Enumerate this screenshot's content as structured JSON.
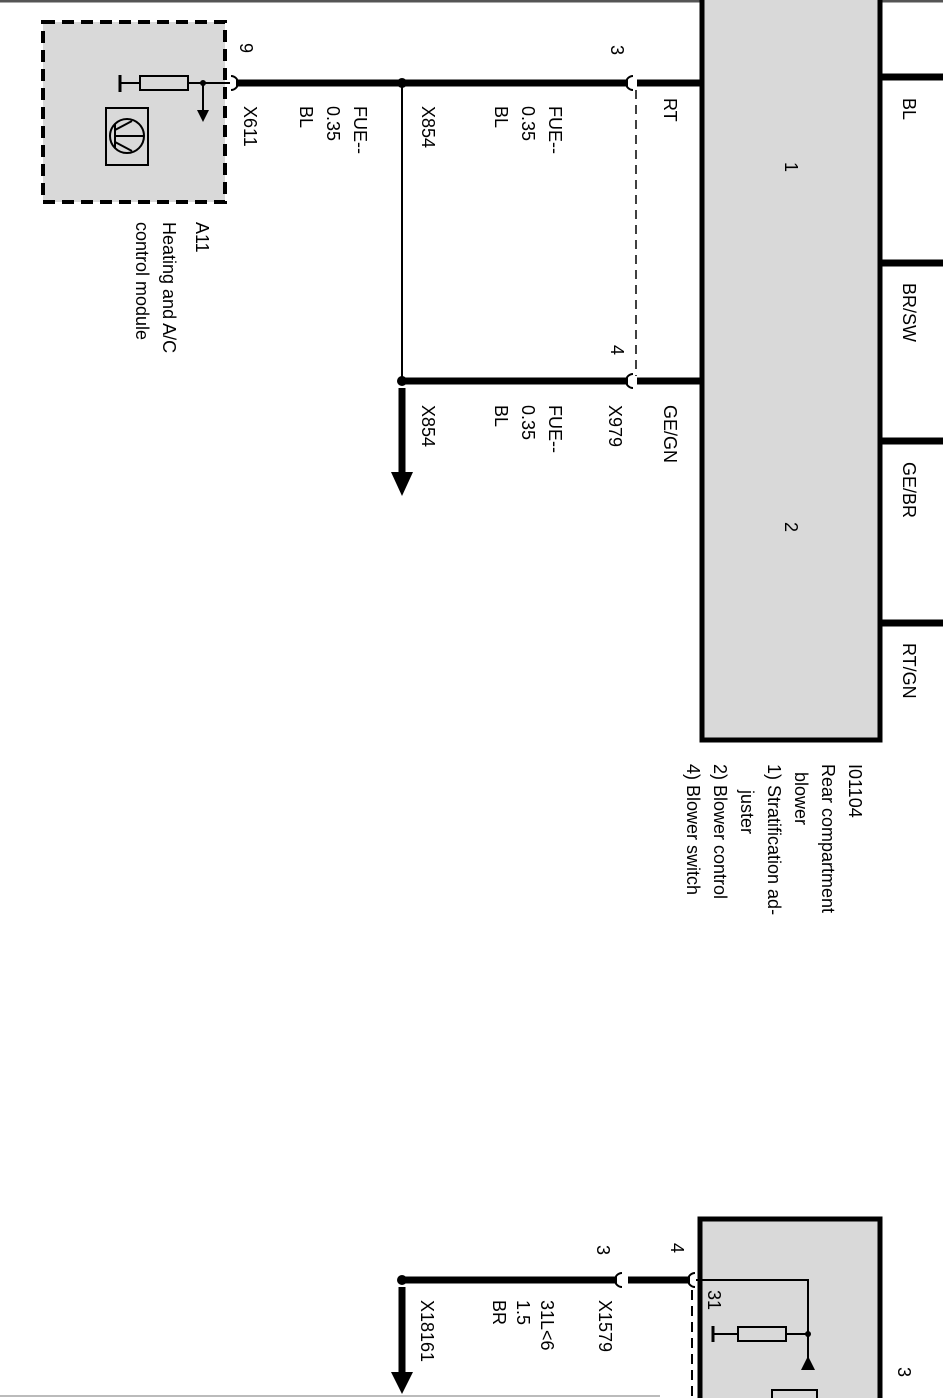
{
  "module_a11": {
    "id": "A11",
    "name_line1": "Heating and A/C",
    "name_line2": "control module",
    "pin": "9",
    "connector": "X611",
    "wire": [
      "FUE--",
      "0.35",
      "BL"
    ]
  },
  "splice_top": {
    "connector": "X854",
    "wire": [
      "FUE--",
      "0.35",
      "BL"
    ]
  },
  "splice_bottom": {
    "connector": "X854",
    "wire": [
      "FUE--",
      "0.35",
      "BL"
    ]
  },
  "blower_pins": {
    "pin3": "3",
    "pin4": "4",
    "color_pin3": "RT",
    "color_pin4": "GE/GN",
    "connector": "X979"
  },
  "blower": {
    "id": "I01104",
    "lines": [
      "Rear compartment",
      "blower",
      "1) Stratification ad-",
      "juster",
      "2) Blower control",
      "4) Blower switch"
    ],
    "section1": "1",
    "section2": "2",
    "right_wires": [
      "BL",
      "BR/SW",
      "GE/BR",
      "RT/GN"
    ],
    "fill": "#d9d9d9"
  },
  "ground": {
    "pin_outer": "3",
    "pin_inner": "4",
    "connector": "X1579",
    "wire": [
      "31L<6",
      "1.5",
      "BR"
    ],
    "splice": "X18161",
    "terminal": "31",
    "right_pin": "3"
  }
}
